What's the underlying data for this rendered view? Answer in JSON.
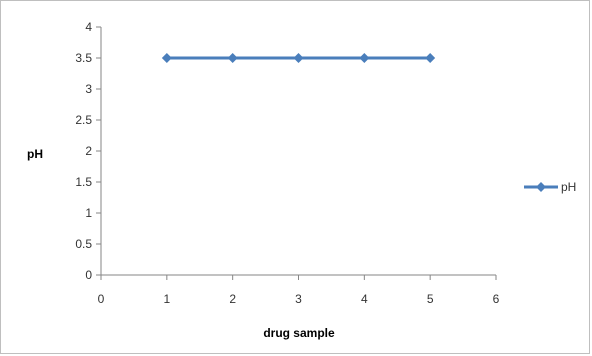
{
  "chart_data": {
    "type": "line",
    "title": "",
    "xlabel": "drug sample",
    "ylabel": "pH",
    "xlim": [
      0,
      6
    ],
    "ylim": [
      0,
      4
    ],
    "x_ticks": [
      "0",
      "1",
      "2",
      "3",
      "4",
      "5",
      "6"
    ],
    "y_ticks": [
      "0",
      "0.5",
      "1",
      "1.5",
      "2",
      "2.5",
      "3",
      "3.5",
      "4"
    ],
    "grid": false,
    "legend_position": "right",
    "series": [
      {
        "name": "pH",
        "color": "#4a7ebb",
        "marker": "diamond",
        "x": [
          1,
          2,
          3,
          4,
          5
        ],
        "y": [
          3.5,
          3.5,
          3.5,
          3.5,
          3.5
        ]
      }
    ]
  }
}
